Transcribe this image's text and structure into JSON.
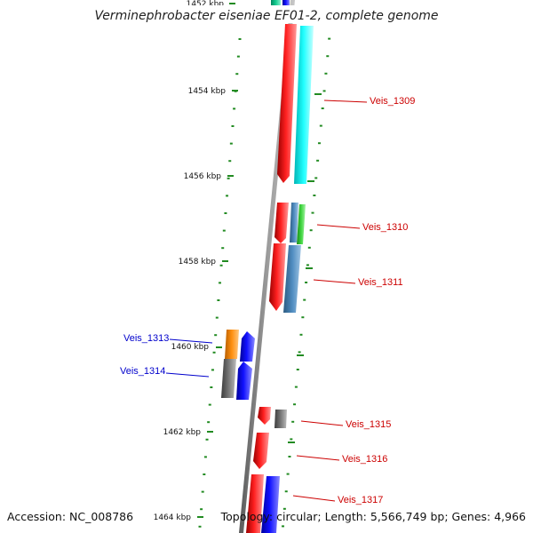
{
  "map": {
    "title": "Verminephrobacter eiseniae EF01-2, complete genome",
    "accession": "Accession: NC_008786",
    "topology": "Topology: circular; Length: 5,566,749 bp; Genes: 4,966"
  },
  "scale": {
    "ticks": [
      "1452 kbp",
      "1454 kbp",
      "1456 kbp",
      "1458 kbp",
      "1460 kbp",
      "1462 kbp",
      "1464 kbp"
    ]
  },
  "labels": {
    "forward": [
      "Veis_1309",
      "Veis_1310",
      "Veis_1311",
      "Veis_1315",
      "Veis_1316",
      "Veis_1317"
    ],
    "reverse": [
      "Veis_1313",
      "Veis_1314"
    ]
  },
  "colors": {
    "forward_label": "#cc0000",
    "reverse_label": "#0000cc",
    "tick": "#228b22",
    "backbone": "#808080",
    "cds_red": "#ff0000",
    "cds_blue": "#0000ff",
    "cyan": "#00ffff",
    "steel": "#4682b4",
    "green": "#33cc33",
    "orange": "#ff8c00",
    "gray": "#707070",
    "teal": "#00bb88"
  }
}
